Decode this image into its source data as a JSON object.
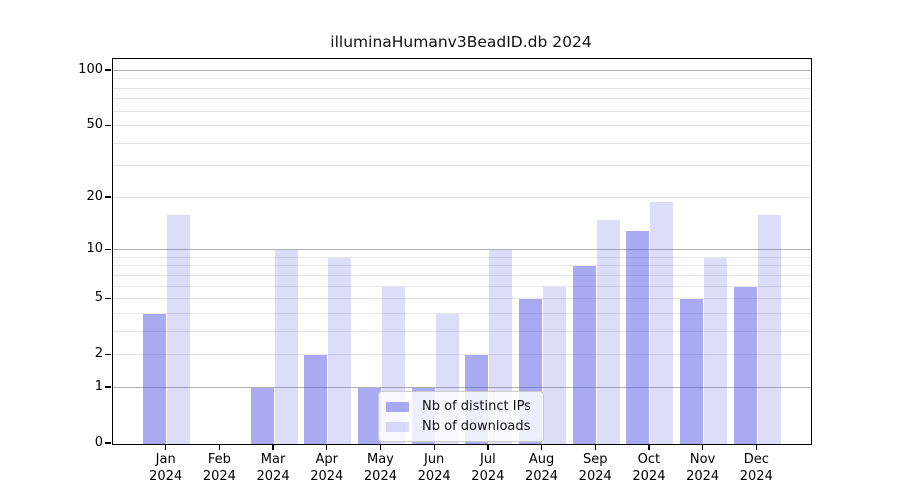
{
  "title": "illuminaHumanv3BeadID.db 2024",
  "colors": {
    "bar_distinct_ips": "rgba(85,85,230,0.5)",
    "bar_downloads": "rgba(85,85,230,0.2)",
    "grid_major": "#b0b0b0",
    "grid_minor": "#e7e7e7",
    "axis": "#000000"
  },
  "chart_data": {
    "type": "bar",
    "title": "illuminaHumanv3BeadID.db 2024",
    "categories": [
      "Jan",
      "Feb",
      "Mar",
      "Apr",
      "May",
      "Jun",
      "Jul",
      "Aug",
      "Sep",
      "Oct",
      "Nov",
      "Dec"
    ],
    "year_label": "2024",
    "series": [
      {
        "name": "Nb of distinct IPs",
        "values": [
          4,
          0,
          1,
          2,
          1,
          1,
          2,
          5,
          8,
          13,
          5,
          6
        ]
      },
      {
        "name": "Nb of downloads",
        "values": [
          16,
          0,
          10,
          9,
          6,
          4,
          10,
          6,
          15,
          19,
          9,
          16
        ]
      }
    ],
    "yscale": "log1p",
    "ylim": [
      0,
      116
    ],
    "y_tick_labels": [
      "0",
      "1",
      "2",
      "5",
      "10",
      "20",
      "50",
      "100"
    ],
    "y_major_gridlines": [
      1,
      10,
      100
    ],
    "y_minor_gridlines": [
      2,
      3,
      4,
      5,
      6,
      7,
      8,
      9,
      20,
      30,
      40,
      50,
      60,
      70,
      80,
      90
    ],
    "grid": true,
    "legend_position": "lower center"
  }
}
